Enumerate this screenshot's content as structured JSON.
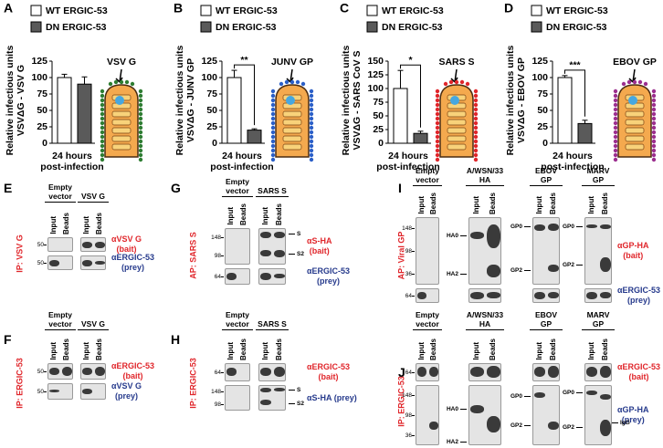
{
  "chart_data": [
    {
      "type": "bar",
      "panel": "A",
      "ylabel": [
        "Relative  infectious units",
        "VSVΔG - VSV G"
      ],
      "xlabel": [
        "24 hours",
        "post-infection"
      ],
      "annotation": "VSV G",
      "series": [
        {
          "name": "WT ERGIC-53",
          "color": "#ffffff",
          "values": [
            100
          ],
          "errors": [
            5
          ]
        },
        {
          "name": "DN ERGIC-53",
          "color": "#5a5a5a",
          "values": [
            90
          ],
          "errors": [
            11
          ]
        }
      ],
      "ylim": [
        0,
        125
      ],
      "yticks": [
        0,
        25,
        50,
        75,
        100,
        125
      ]
    },
    {
      "type": "bar",
      "panel": "B",
      "ylabel": [
        "Relative  infectious units",
        "VSVΔG - JUNV  GP"
      ],
      "xlabel": [
        "24 hours",
        "post-infection"
      ],
      "annotation": "JUNV GP",
      "significance": "**",
      "series": [
        {
          "name": "WT ERGIC-53",
          "color": "#ffffff",
          "values": [
            100
          ],
          "errors": [
            11
          ]
        },
        {
          "name": "DN ERGIC-53",
          "color": "#5a5a5a",
          "values": [
            20
          ],
          "errors": [
            2
          ]
        }
      ],
      "ylim": [
        0,
        125
      ],
      "yticks": [
        0,
        25,
        50,
        75,
        100,
        125
      ]
    },
    {
      "type": "bar",
      "panel": "C",
      "ylabel": [
        "Relative  infectious units",
        "VSVΔG - SARS  CoV  S"
      ],
      "xlabel": [
        "24 hours",
        "post-infection"
      ],
      "annotation": "SARS S",
      "significance": "*",
      "series": [
        {
          "name": "WT ERGIC-53",
          "color": "#ffffff",
          "values": [
            100
          ],
          "errors": [
            33
          ]
        },
        {
          "name": "DN ERGIC-53",
          "color": "#5a5a5a",
          "values": [
            18
          ],
          "errors": [
            4
          ]
        }
      ],
      "ylim": [
        0,
        150
      ],
      "yticks": [
        0,
        25,
        50,
        75,
        100,
        125,
        150
      ]
    },
    {
      "type": "bar",
      "panel": "D",
      "ylabel": [
        "Relative  infectious units",
        "VSVΔG - EBOV  GP"
      ],
      "xlabel": [
        "24 hours",
        "post-infection"
      ],
      "annotation": "EBOV GP",
      "significance": "***",
      "series": [
        {
          "name": "WT ERGIC-53",
          "color": "#ffffff",
          "values": [
            100
          ],
          "errors": [
            3
          ]
        },
        {
          "name": "DN ERGIC-53",
          "color": "#5a5a5a",
          "values": [
            30
          ],
          "errors": [
            5
          ]
        }
      ],
      "ylim": [
        0,
        125
      ],
      "yticks": [
        0,
        25,
        50,
        75,
        100,
        125
      ]
    }
  ],
  "blots": [
    {
      "letter": "E",
      "side": "IP: VSV G",
      "columns": [
        "Empty vector",
        "VSV G"
      ],
      "lanes": [
        "Input",
        "Beads"
      ],
      "rows": [
        {
          "mw": [
            "50"
          ],
          "label": [
            "αVSV G",
            "(bait)"
          ],
          "color": "#e0262b"
        },
        {
          "mw": [
            "50"
          ],
          "label": [
            "αERGIC-53",
            "(prey)"
          ],
          "color": "#263a8c"
        }
      ]
    },
    {
      "letter": "F",
      "side": "IP: ERGIC-53",
      "columns": [
        "Empty vector",
        "VSV G"
      ],
      "lanes": [
        "Input",
        "Beads"
      ],
      "rows": [
        {
          "mw": [
            "50"
          ],
          "label": [
            "αERGIC-53",
            "(bait)"
          ],
          "color": "#e0262b"
        },
        {
          "mw": [
            "50"
          ],
          "label": [
            "αVSV G",
            "(prey)"
          ],
          "color": "#263a8c"
        }
      ]
    },
    {
      "letter": "G",
      "side": "AP: SARS S",
      "columns": [
        "Empty vector",
        "SARS S"
      ],
      "lanes": [
        "Input",
        "Beads"
      ],
      "rows": [
        {
          "mw": [
            "148",
            "98"
          ],
          "tags": [
            "S",
            "S2"
          ],
          "label": [
            "αS-HA",
            "(bait)"
          ],
          "color": "#e0262b"
        },
        {
          "mw": [
            "64"
          ],
          "label": [
            "αERGIC-53",
            "(prey)"
          ],
          "color": "#263a8c"
        }
      ]
    },
    {
      "letter": "H",
      "side": "IP: ERGIC-53",
      "columns": [
        "Empty vector",
        "SARS S"
      ],
      "lanes": [
        "Input",
        "Beads"
      ],
      "rows": [
        {
          "mw": [
            "64"
          ],
          "label": [
            "αERGIC-53",
            "(bait)"
          ],
          "color": "#e0262b"
        },
        {
          "mw": [
            "148",
            "98"
          ],
          "tags": [
            "S",
            "S2"
          ],
          "label": [
            "αS-HA (prey)"
          ],
          "color": "#263a8c"
        }
      ]
    },
    {
      "letter": "I",
      "side": "AP: Viral GP",
      "columns": [
        "Empty vector",
        "A/WSN/33 HA",
        "EBOV GP",
        "MARV GP"
      ],
      "lanes": [
        "Input",
        "Beads"
      ],
      "rows": [
        {
          "mw": [
            "148",
            "98",
            "36"
          ],
          "tags": [
            "HA0",
            "HA2",
            "GP0",
            "GP2",
            "GP0",
            "GP2"
          ],
          "label": [
            "αGP-HA",
            "(bait)"
          ],
          "color": "#e0262b"
        },
        {
          "mw": [
            "64"
          ],
          "label": [
            "αERGIC-53",
            "(prey)"
          ],
          "color": "#263a8c"
        }
      ]
    },
    {
      "letter": "J",
      "side": "IP: ERGIC-53",
      "columns": [
        "Empty vector",
        "A/WSN/33 HA",
        "EBOV GP",
        "MARV GP"
      ],
      "lanes": [
        "Input",
        "Beads"
      ],
      "rows": [
        {
          "mw": [
            "64"
          ],
          "label": [
            "αERGIC-53",
            "(bait)"
          ],
          "color": "#e0262b"
        },
        {
          "mw": [
            "148",
            "98",
            "36"
          ],
          "tags": [
            "HA0",
            "HA2",
            "GP0",
            "GP2",
            "GP0",
            "GP2",
            "IgG"
          ],
          "label": [
            "αGP-HA",
            "(prey)"
          ],
          "color": "#263a8c"
        }
      ]
    }
  ]
}
